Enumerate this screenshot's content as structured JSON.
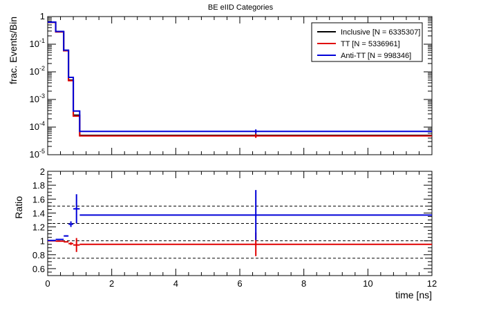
{
  "title": "BE eIID Categories",
  "colors": {
    "inclusive": "#000000",
    "tt": "#e00000",
    "antitt": "#0000d8",
    "frame": "#000000",
    "grid_dashed": "#000000"
  },
  "chart_data": [
    {
      "type": "line",
      "style": "step-histogram",
      "title": "BE eIID Categories",
      "xlabel": "",
      "ylabel": "frac. Events/Bin",
      "yscale": "log",
      "xlim": [
        0,
        12
      ],
      "ylim": [
        1e-05,
        1
      ],
      "y_tick_labels": [
        "10^-5",
        "10^-4",
        "10^-3",
        "10^-2",
        "10^-1",
        "1"
      ],
      "legend_position": "top-right",
      "bin_edges": [
        0,
        0.25,
        0.5,
        0.65,
        0.8,
        1.0,
        12
      ],
      "series": [
        {
          "name": "Inclusive [N = 6335307]",
          "color_key": "inclusive",
          "values": [
            0.62,
            0.28,
            0.058,
            0.005,
            0.00027,
            5e-05
          ]
        },
        {
          "name": "TT [N = 5336961]",
          "color_key": "tt",
          "values": [
            0.62,
            0.28,
            0.058,
            0.0048,
            0.00025,
            4.8e-05
          ]
        },
        {
          "name": "Anti-TT [N = 998346]",
          "color_key": "antitt",
          "values": [
            0.63,
            0.29,
            0.061,
            0.0063,
            0.00038,
            7e-05
          ]
        }
      ]
    },
    {
      "type": "scatter",
      "style": "ratio-with-errors",
      "xlabel": "time [ns]",
      "ylabel": "Ratio",
      "xlim": [
        0,
        12
      ],
      "ylim": [
        0.5,
        2
      ],
      "x_ticks": [
        0,
        2,
        4,
        6,
        8,
        10,
        12
      ],
      "y_ticks": [
        0.6,
        0.8,
        1,
        1.2,
        1.4,
        1.6,
        1.8,
        2
      ],
      "reference_lines": [
        0.75,
        1.0,
        1.25,
        1.5
      ],
      "series": [
        {
          "name": "TT [N = 5336961]",
          "color_key": "tt",
          "points": [
            {
              "x": 0.125,
              "xerr": 0.125,
              "y": 1.0,
              "yerr": 0.003
            },
            {
              "x": 0.375,
              "xerr": 0.125,
              "y": 0.995,
              "yerr": 0.005
            },
            {
              "x": 0.575,
              "xerr": 0.075,
              "y": 0.985,
              "yerr": 0.008
            },
            {
              "x": 0.725,
              "xerr": 0.075,
              "y": 0.96,
              "yerr": 0.02
            },
            {
              "x": 0.9,
              "xerr": 0.1,
              "y": 0.94,
              "yerr": 0.1
            },
            {
              "x": 6.5,
              "xerr": 5.5,
              "y": 0.95,
              "yerr": 0.17
            }
          ]
        },
        {
          "name": "Anti-TT [N = 998346]",
          "color_key": "antitt",
          "points": [
            {
              "x": 0.125,
              "xerr": 0.125,
              "y": 1.005,
              "yerr": 0.003
            },
            {
              "x": 0.375,
              "xerr": 0.125,
              "y": 1.02,
              "yerr": 0.005
            },
            {
              "x": 0.575,
              "xerr": 0.075,
              "y": 1.07,
              "yerr": 0.01
            },
            {
              "x": 0.725,
              "xerr": 0.075,
              "y": 1.24,
              "yerr": 0.04
            },
            {
              "x": 0.9,
              "xerr": 0.1,
              "y": 1.46,
              "yerr": 0.21
            },
            {
              "x": 6.5,
              "xerr": 5.5,
              "y": 1.37,
              "yerr": 0.36
            }
          ]
        }
      ]
    }
  ]
}
